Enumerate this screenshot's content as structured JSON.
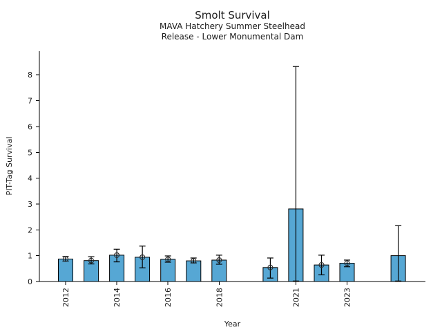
{
  "chart_data": {
    "type": "bar",
    "title": "Smolt Survival",
    "subtitle_lines": [
      "MAVA Hatchery Summer Steelhead",
      "Release - Lower Monumental Dam"
    ],
    "xlabel": "Year",
    "ylabel": "PIT-Tag Survival",
    "ylim": [
      0,
      8.9
    ],
    "yticks": [
      0,
      1,
      2,
      3,
      4,
      5,
      6,
      7,
      8
    ],
    "xticks_labeled": [
      2012,
      2014,
      2016,
      2018,
      2021,
      2023
    ],
    "x_range": [
      2012,
      2025
    ],
    "missing_years": [
      2019,
      2024
    ],
    "grid": false,
    "legend_position": "none",
    "bar_color": "#56A7D4",
    "bar_edge_color": "#000000",
    "error_bar_color": "#000000",
    "marker_style": "open-circle",
    "marker_edge_color": "#2b2b2b",
    "points": [
      {
        "year": 2012,
        "value": 0.87,
        "err_low": 0.79,
        "err_high": 0.97,
        "marker": true
      },
      {
        "year": 2013,
        "value": 0.81,
        "err_low": 0.68,
        "err_high": 0.96,
        "marker": true
      },
      {
        "year": 2014,
        "value": 1.02,
        "err_low": 0.76,
        "err_high": 1.25,
        "marker": true
      },
      {
        "year": 2015,
        "value": 0.94,
        "err_low": 0.53,
        "err_high": 1.37,
        "marker": true
      },
      {
        "year": 2016,
        "value": 0.86,
        "err_low": 0.75,
        "err_high": 0.99,
        "marker": true
      },
      {
        "year": 2017,
        "value": 0.8,
        "err_low": 0.72,
        "err_high": 0.91,
        "marker": true
      },
      {
        "year": 2018,
        "value": 0.83,
        "err_low": 0.67,
        "err_high": 1.02,
        "marker": true
      },
      {
        "year": 2020,
        "value": 0.54,
        "err_low": 0.13,
        "err_high": 0.91,
        "marker": true
      },
      {
        "year": 2021,
        "value": 2.81,
        "err_low": 0.02,
        "err_high": 8.32,
        "marker": false
      },
      {
        "year": 2022,
        "value": 0.64,
        "err_low": 0.26,
        "err_high": 1.02,
        "marker": true
      },
      {
        "year": 2023,
        "value": 0.71,
        "err_low": 0.57,
        "err_high": 0.83,
        "marker": true
      },
      {
        "year": 2025,
        "value": 1.0,
        "err_low": 0.02,
        "err_high": 2.16,
        "marker": false
      }
    ]
  }
}
